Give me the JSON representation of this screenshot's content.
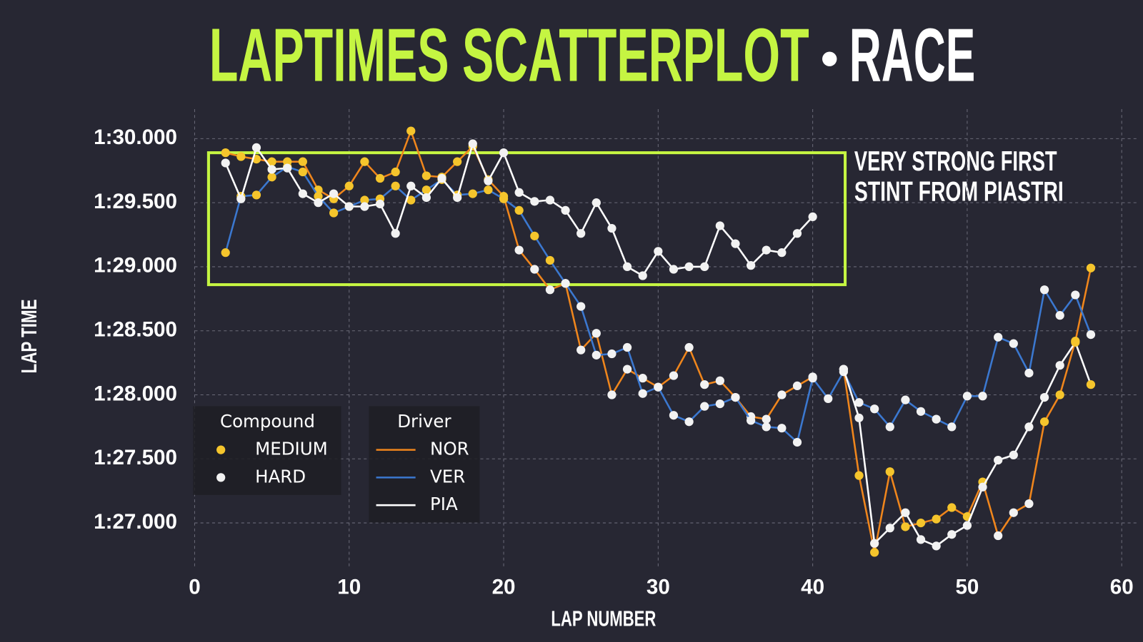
{
  "chart_data": {
    "type": "line-scatter",
    "title": "LAPTIMES SCATTERPLOT",
    "subtitle": "RACE",
    "annotation": [
      "VERY STRONG FIRST",
      "STINT FROM PIASTRI"
    ],
    "highlight_box": {
      "x": [
        0.9,
        42.1
      ],
      "y": [
        88.86,
        89.89
      ]
    },
    "x_label": "LAP NUMBER",
    "y_label": "LAP TIME",
    "xlim": [
      0,
      61
    ],
    "ylim": [
      86.65,
      90.23
    ],
    "xticks": [
      0,
      10,
      20,
      30,
      40,
      50,
      60
    ],
    "yticks": [
      {
        "value": 87,
        "label": "1:27.000"
      },
      {
        "value": 87.5,
        "label": "1:27.500"
      },
      {
        "value": 88,
        "label": "1:28.000"
      },
      {
        "value": 88.5,
        "label": "1:28.500"
      },
      {
        "value": 89,
        "label": "1:29.000"
      },
      {
        "value": 89.5,
        "label": "1:29.500"
      },
      {
        "value": 90,
        "label": "1:30.000"
      }
    ],
    "grid": true,
    "legend": "lower left",
    "compound_legend_title": "Compound",
    "compound_legend": [
      {
        "name": "MEDIUM",
        "color": "#f5c52c"
      },
      {
        "name": "HARD",
        "color": "#f2f2f2"
      }
    ],
    "driver_legend_title": "Driver",
    "x": [
      2,
      3,
      4,
      5,
      6,
      7,
      8,
      9,
      10,
      11,
      12,
      13,
      14,
      15,
      16,
      17,
      18,
      19,
      20,
      21,
      22,
      23,
      24,
      25,
      26,
      27,
      28,
      29,
      30,
      31,
      32,
      33,
      34,
      35,
      36,
      37,
      38,
      39,
      40,
      41,
      42,
      43,
      44,
      45,
      46,
      47,
      48,
      49,
      50,
      51,
      52,
      53,
      54,
      55,
      56,
      57,
      58
    ],
    "series": [
      {
        "name": "NOR",
        "color": "#f0861c",
        "values": [
          89.89,
          89.86,
          89.84,
          89.82,
          89.82,
          89.82,
          89.6,
          89.53,
          89.63,
          89.82,
          89.69,
          89.74,
          90.06,
          89.71,
          89.7,
          89.82,
          89.94,
          89.68,
          89.55,
          89.13,
          88.98,
          88.82,
          88.87,
          88.35,
          88.48,
          88.0,
          88.2,
          88.13,
          88.06,
          88.15,
          88.37,
          88.08,
          88.11,
          87.98,
          87.83,
          87.81,
          88.0,
          88.07,
          88.14,
          null,
          88.2,
          87.37,
          86.77,
          87.4,
          86.97,
          87.0,
          87.03,
          87.12,
          87.05,
          87.32,
          86.9,
          87.08,
          87.15,
          87.79,
          88.0,
          88.42,
          88.99
        ],
        "compounds": [
          "MEDIUM",
          "MEDIUM",
          "MEDIUM",
          "MEDIUM",
          "MEDIUM",
          "MEDIUM",
          "MEDIUM",
          "MEDIUM",
          "MEDIUM",
          "MEDIUM",
          "MEDIUM",
          "MEDIUM",
          "MEDIUM",
          "MEDIUM",
          "MEDIUM",
          "MEDIUM",
          "MEDIUM",
          "MEDIUM",
          "MEDIUM",
          "HARD",
          "HARD",
          "HARD",
          "HARD",
          "HARD",
          "HARD",
          "HARD",
          "HARD",
          "HARD",
          "HARD",
          "HARD",
          "HARD",
          "HARD",
          "HARD",
          "HARD",
          "HARD",
          "HARD",
          "HARD",
          "HARD",
          "HARD",
          null,
          "HARD",
          "MEDIUM",
          "MEDIUM",
          "MEDIUM",
          "MEDIUM",
          "MEDIUM",
          "MEDIUM",
          "MEDIUM",
          "MEDIUM",
          "MEDIUM",
          "HARD",
          "HARD",
          "HARD",
          "MEDIUM",
          "MEDIUM",
          "MEDIUM",
          "MEDIUM"
        ]
      },
      {
        "name": "VER",
        "color": "#3b78d0",
        "values": [
          89.11,
          89.55,
          89.56,
          89.7,
          89.78,
          89.74,
          89.55,
          89.42,
          89.47,
          89.52,
          89.53,
          89.63,
          89.52,
          89.6,
          89.68,
          89.56,
          89.57,
          89.6,
          89.53,
          89.44,
          89.24,
          89.05,
          88.87,
          88.69,
          88.31,
          88.32,
          88.37,
          88.01,
          88.06,
          87.84,
          87.79,
          87.91,
          87.93,
          87.98,
          87.8,
          87.75,
          87.74,
          87.63,
          88.13,
          87.97,
          88.18,
          87.94,
          87.89,
          87.75,
          87.96,
          87.87,
          87.81,
          87.75,
          87.99,
          87.99,
          88.45,
          88.4,
          88.17,
          88.82,
          88.62,
          88.78,
          88.47
        ],
        "compounds": [
          "MEDIUM",
          "MEDIUM",
          "MEDIUM",
          "MEDIUM",
          "MEDIUM",
          "MEDIUM",
          "MEDIUM",
          "MEDIUM",
          "MEDIUM",
          "MEDIUM",
          "MEDIUM",
          "MEDIUM",
          "MEDIUM",
          "MEDIUM",
          "MEDIUM",
          "MEDIUM",
          "MEDIUM",
          "MEDIUM",
          "MEDIUM",
          "MEDIUM",
          "MEDIUM",
          "MEDIUM",
          "HARD",
          "HARD",
          "HARD",
          "HARD",
          "HARD",
          "HARD",
          "HARD",
          "HARD",
          "HARD",
          "HARD",
          "HARD",
          "HARD",
          "HARD",
          "HARD",
          "HARD",
          "HARD",
          "HARD",
          "HARD",
          "HARD",
          "HARD",
          "HARD",
          "HARD",
          "HARD",
          "HARD",
          "HARD",
          "HARD",
          "HARD",
          "HARD",
          "HARD",
          "HARD",
          "HARD",
          "HARD",
          "HARD",
          "HARD",
          "HARD"
        ]
      },
      {
        "name": "PIA",
        "color": "#ffffff",
        "values": [
          89.81,
          89.53,
          89.93,
          89.76,
          89.77,
          89.57,
          89.5,
          89.57,
          89.47,
          89.47,
          89.49,
          89.26,
          89.63,
          89.54,
          89.69,
          89.54,
          89.96,
          89.67,
          89.89,
          89.58,
          89.51,
          89.52,
          89.44,
          89.26,
          89.5,
          89.3,
          89.0,
          88.93,
          89.12,
          88.98,
          89.0,
          89.0,
          89.32,
          89.18,
          89.01,
          89.13,
          89.11,
          89.26,
          89.39,
          null,
          88.2,
          87.82,
          86.84,
          86.96,
          87.08,
          86.87,
          86.82,
          86.91,
          86.98,
          87.28,
          87.49,
          87.53,
          87.75,
          87.98,
          88.23,
          88.41,
          88.08
        ],
        "compounds": [
          "HARD",
          "HARD",
          "HARD",
          "HARD",
          "HARD",
          "HARD",
          "HARD",
          "HARD",
          "HARD",
          "HARD",
          "HARD",
          "HARD",
          "HARD",
          "HARD",
          "HARD",
          "HARD",
          "HARD",
          "HARD",
          "HARD",
          "HARD",
          "HARD",
          "HARD",
          "HARD",
          "HARD",
          "HARD",
          "HARD",
          "HARD",
          "HARD",
          "HARD",
          "HARD",
          "HARD",
          "HARD",
          "HARD",
          "HARD",
          "HARD",
          "HARD",
          "HARD",
          "HARD",
          "HARD",
          null,
          "HARD",
          "HARD",
          "HARD",
          "HARD",
          "HARD",
          "HARD",
          "HARD",
          "HARD",
          "HARD",
          "HARD",
          "HARD",
          "HARD",
          "HARD",
          "HARD",
          "HARD",
          "MEDIUM",
          "MEDIUM"
        ]
      }
    ]
  }
}
